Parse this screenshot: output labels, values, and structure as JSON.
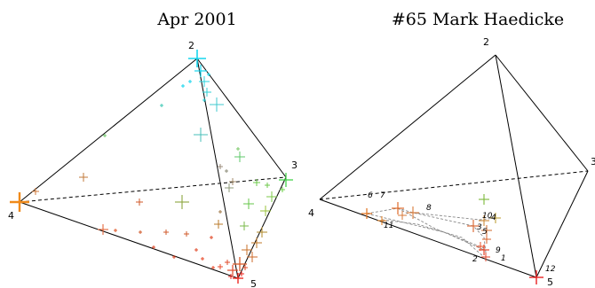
{
  "panels": [
    {
      "title": "Apr 2001",
      "vertices": [
        {
          "id": "v2",
          "label": "2"
        },
        {
          "id": "v3",
          "label": "3"
        },
        {
          "id": "v4",
          "label": "4"
        },
        {
          "id": "v5",
          "label": "5"
        }
      ]
    },
    {
      "title": "#65 Mark Haedicke",
      "vertices": [
        {
          "id": "v2",
          "label": "2"
        },
        {
          "id": "v3",
          "label": "3"
        },
        {
          "id": "v4",
          "label": "4"
        },
        {
          "id": "v5",
          "label": "5"
        }
      ],
      "point_labels": [
        "1",
        "2",
        "3",
        "4",
        "5",
        "6",
        "7",
        "8",
        "9",
        "10",
        "11",
        "12"
      ]
    }
  ]
}
